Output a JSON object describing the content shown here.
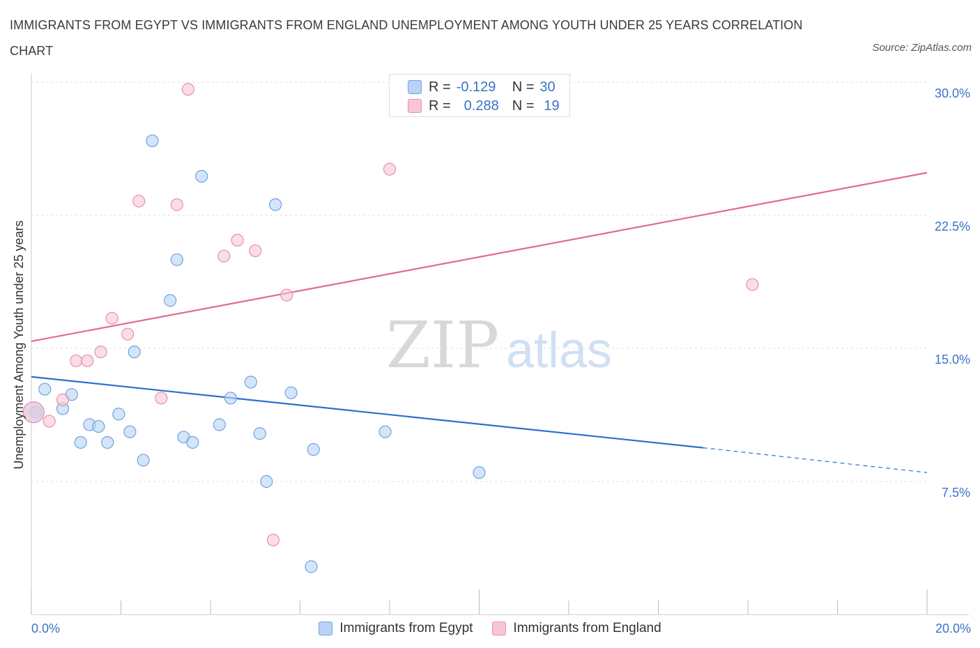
{
  "title": "IMMIGRANTS FROM EGYPT VS IMMIGRANTS FROM ENGLAND UNEMPLOYMENT AMONG YOUTH UNDER 25 YEARS CORRELATION CHART",
  "source": "Source: ZipAtlas.com",
  "watermark": {
    "zip": "ZIP",
    "atlas": "atlas"
  },
  "legend": {
    "rows": [
      {
        "r_label": "R =",
        "r_value": "-0.129",
        "n_label": "N =",
        "n_value": "30"
      },
      {
        "r_label": "R =",
        "r_value": "0.288",
        "n_label": "N =",
        "n_value": "19"
      }
    ]
  },
  "colors": {
    "egypt_fill": "#b8d3f5",
    "egypt_stroke": "#6fa3e0",
    "egypt_line": "#2f6fcc",
    "england_fill": "#f8c6d4",
    "england_stroke": "#ea8fab",
    "england_line": "#e06a94",
    "axis_text": "#3a72c8",
    "grid": "#dedede"
  },
  "chart_data": {
    "type": "scatter",
    "title": "IMMIGRANTS FROM EGYPT VS IMMIGRANTS FROM ENGLAND UNEMPLOYMENT AMONG YOUTH UNDER 25 YEARS CORRELATION CHART",
    "xlabel": "",
    "ylabel": "Unemployment Among Youth under 25 years",
    "xlim": [
      0,
      20
    ],
    "ylim": [
      0,
      30
    ],
    "x_tick_labels": [
      "0.0%",
      "20.0%"
    ],
    "y_ticks": [
      {
        "value": 7.5,
        "label": "7.5%"
      },
      {
        "value": 15,
        "label": "15.0%"
      },
      {
        "value": 22.5,
        "label": "22.5%"
      },
      {
        "value": 30,
        "label": "30.0%"
      }
    ],
    "grid": true,
    "legend_position": "bottom",
    "series": [
      {
        "name": "Immigrants from Egypt",
        "color_key": "egypt",
        "points": [
          {
            "x": 0.1,
            "y": 11.4
          },
          {
            "x": 0.3,
            "y": 12.7
          },
          {
            "x": 0.7,
            "y": 11.6
          },
          {
            "x": 0.9,
            "y": 12.4
          },
          {
            "x": 1.1,
            "y": 9.7
          },
          {
            "x": 1.3,
            "y": 10.7
          },
          {
            "x": 1.5,
            "y": 10.6
          },
          {
            "x": 1.7,
            "y": 9.7
          },
          {
            "x": 1.95,
            "y": 11.3
          },
          {
            "x": 2.2,
            "y": 10.3
          },
          {
            "x": 2.3,
            "y": 14.8
          },
          {
            "x": 2.5,
            "y": 8.7
          },
          {
            "x": 2.7,
            "y": 26.7
          },
          {
            "x": 3.1,
            "y": 17.7
          },
          {
            "x": 3.25,
            "y": 20.0
          },
          {
            "x": 3.4,
            "y": 10.0
          },
          {
            "x": 3.6,
            "y": 9.7
          },
          {
            "x": 3.8,
            "y": 24.7
          },
          {
            "x": 4.2,
            "y": 10.7
          },
          {
            "x": 4.45,
            "y": 12.2
          },
          {
            "x": 4.9,
            "y": 13.1
          },
          {
            "x": 5.1,
            "y": 10.2
          },
          {
            "x": 5.25,
            "y": 7.5
          },
          {
            "x": 5.45,
            "y": 23.1
          },
          {
            "x": 5.8,
            "y": 12.5
          },
          {
            "x": 6.3,
            "y": 9.3
          },
          {
            "x": 6.25,
            "y": 2.7
          },
          {
            "x": 7.9,
            "y": 10.3
          },
          {
            "x": 10.0,
            "y": 8.0
          },
          {
            "x": 0.05,
            "y": 11.4,
            "large": true
          }
        ],
        "trend": {
          "x0": 0,
          "y0": 13.4,
          "x1": 15.0,
          "y1": 9.4,
          "dash_to_x": 20,
          "dash_to_y": 8.0
        }
      },
      {
        "name": "Immigrants from England",
        "color_key": "england",
        "points": [
          {
            "x": 0.4,
            "y": 10.9
          },
          {
            "x": 0.7,
            "y": 12.1
          },
          {
            "x": 1.0,
            "y": 14.3
          },
          {
            "x": 1.25,
            "y": 14.3
          },
          {
            "x": 1.55,
            "y": 14.8
          },
          {
            "x": 1.8,
            "y": 16.7
          },
          {
            "x": 2.15,
            "y": 15.8
          },
          {
            "x": 2.4,
            "y": 23.3
          },
          {
            "x": 2.9,
            "y": 12.2
          },
          {
            "x": 3.25,
            "y": 23.1
          },
          {
            "x": 3.5,
            "y": 29.6
          },
          {
            "x": 4.3,
            "y": 20.2
          },
          {
            "x": 4.6,
            "y": 21.1
          },
          {
            "x": 5.0,
            "y": 20.5
          },
          {
            "x": 5.4,
            "y": 4.2
          },
          {
            "x": 5.7,
            "y": 18.0
          },
          {
            "x": 8.0,
            "y": 25.1
          },
          {
            "x": 16.1,
            "y": 18.6
          },
          {
            "x": 0.05,
            "y": 11.4,
            "large": true
          }
        ],
        "trend": {
          "x0": 0,
          "y0": 15.4,
          "x1": 20,
          "y1": 24.9
        }
      }
    ]
  }
}
